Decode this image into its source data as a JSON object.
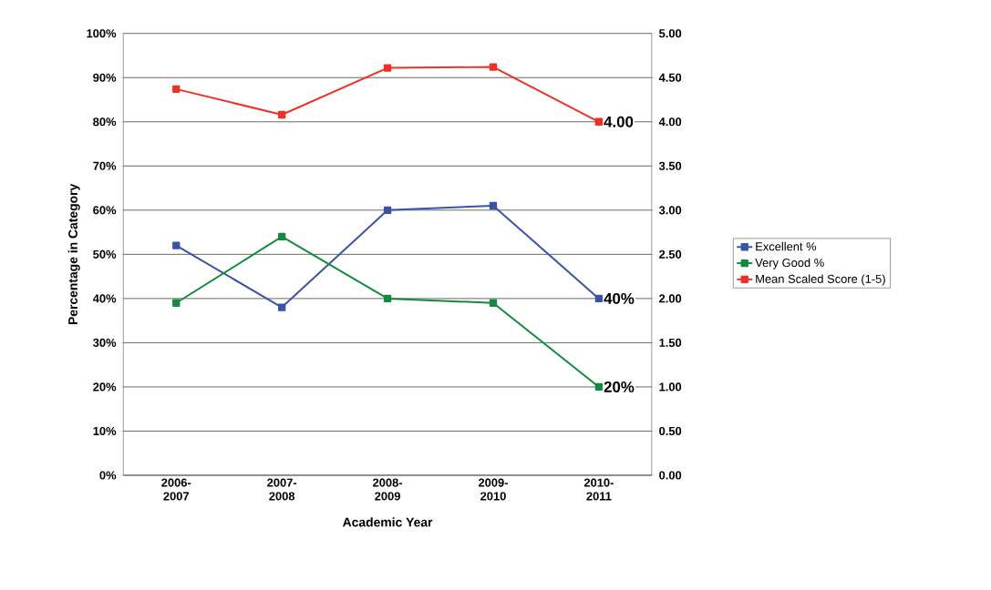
{
  "chart_data": {
    "type": "line",
    "xlabel": "Academic Year",
    "ylabel": "Percentage in Category",
    "categories": [
      "2006-2007",
      "2007-2008",
      "2008-2009",
      "2009-2010",
      "2010-2011"
    ],
    "series": [
      {
        "name": "Excellent %",
        "color": "#3a53a4",
        "values": [
          52,
          38,
          60,
          61,
          40
        ],
        "value_labels": [
          null,
          null,
          null,
          null,
          "40%"
        ]
      },
      {
        "name": "Very Good %",
        "color": "#138a3e",
        "values": [
          39,
          54,
          40,
          39,
          20
        ],
        "value_labels": [
          null,
          null,
          null,
          null,
          "20%"
        ]
      },
      {
        "name": "Mean Scaled Score (1-5)",
        "color": "#ee3124",
        "axis": "y2",
        "values": [
          4.37,
          4.08,
          4.61,
          4.62,
          4.0
        ],
        "value_labels": [
          null,
          null,
          null,
          null,
          "4.00"
        ]
      }
    ],
    "ylim": [
      0,
      100
    ],
    "yticks": [
      {
        "value": 0,
        "label": "0%"
      },
      {
        "value": 10,
        "label": "10%"
      },
      {
        "value": 20,
        "label": "20%"
      },
      {
        "value": 30,
        "label": "30%"
      },
      {
        "value": 40,
        "label": "40%"
      },
      {
        "value": 50,
        "label": "50%"
      },
      {
        "value": 60,
        "label": "60%"
      },
      {
        "value": 70,
        "label": "70%"
      },
      {
        "value": 80,
        "label": "80%"
      },
      {
        "value": 90,
        "label": "90%"
      },
      {
        "value": 100,
        "label": "100%"
      }
    ],
    "y2lim": [
      0,
      5
    ],
    "y2ticks": [
      {
        "value": 0,
        "label": "0.00"
      },
      {
        "value": 0.5,
        "label": "0.50"
      },
      {
        "value": 1,
        "label": "1.00"
      },
      {
        "value": 1.5,
        "label": "1.50"
      },
      {
        "value": 2,
        "label": "2.00"
      },
      {
        "value": 2.5,
        "label": "2.50"
      },
      {
        "value": 3,
        "label": "3.00"
      },
      {
        "value": 3.5,
        "label": "3.50"
      },
      {
        "value": 4,
        "label": "4.00"
      },
      {
        "value": 4.5,
        "label": "4.50"
      },
      {
        "value": 5,
        "label": "5.00"
      }
    ],
    "grid": "y",
    "legend": "right",
    "marker": "square",
    "line_style": "solid"
  }
}
